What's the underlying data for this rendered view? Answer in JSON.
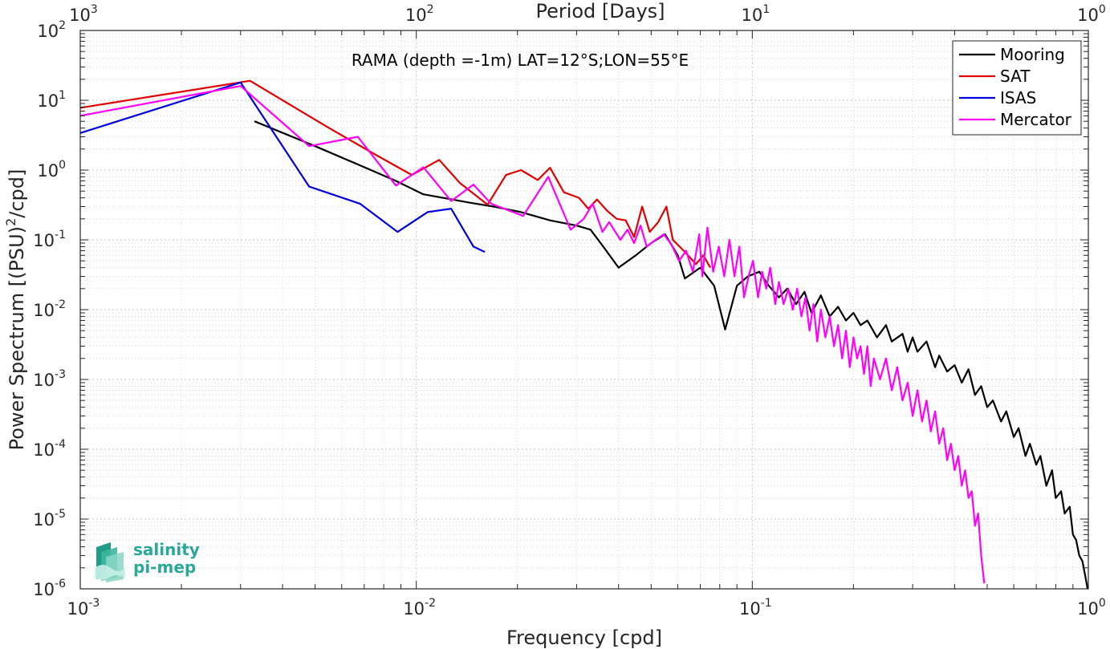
{
  "chart_data": {
    "type": "line",
    "title": "RAMA (depth =-1m) LAT=12°S;LON=55°E",
    "xlabel": "Frequency [cpd]",
    "ylabel": "Power Spectrum [(PSU)²/cpd]",
    "ylabel_parts": {
      "pre": "Power Spectrum [(PSU)",
      "sup": "2",
      "post": "/cpd]"
    },
    "top_xlabel": "Period [Days]",
    "xscale": "log",
    "yscale": "log",
    "xlim": [
      0.001,
      1
    ],
    "ylim": [
      1e-06,
      100
    ],
    "grid": true,
    "legend_position": "top-right",
    "x_ticks": [
      {
        "value": 0.001,
        "base": "10",
        "exp": "-3"
      },
      {
        "value": 0.01,
        "base": "10",
        "exp": "-2"
      },
      {
        "value": 0.1,
        "base": "10",
        "exp": "-1"
      },
      {
        "value": 1,
        "base": "10",
        "exp": "0"
      }
    ],
    "top_ticks": [
      {
        "value": 0.001,
        "base": "10",
        "exp": "3"
      },
      {
        "value": 0.01,
        "base": "10",
        "exp": "2"
      },
      {
        "value": 0.1,
        "base": "10",
        "exp": "1"
      },
      {
        "value": 1,
        "base": "10",
        "exp": "0"
      }
    ],
    "y_ticks": [
      {
        "value": 1e-06,
        "base": "10",
        "exp": "-6"
      },
      {
        "value": 1e-05,
        "base": "10",
        "exp": "-5"
      },
      {
        "value": 0.0001,
        "base": "10",
        "exp": "-4"
      },
      {
        "value": 0.001,
        "base": "10",
        "exp": "-3"
      },
      {
        "value": 0.01,
        "base": "10",
        "exp": "-2"
      },
      {
        "value": 0.1,
        "base": "10",
        "exp": "-1"
      },
      {
        "value": 1,
        "base": "10",
        "exp": "0"
      },
      {
        "value": 10,
        "base": "10",
        "exp": "1"
      },
      {
        "value": 100,
        "base": "10",
        "exp": "2"
      }
    ],
    "series": [
      {
        "name": "Mooring",
        "color": "#000000",
        "data": [
          [
            0.0033,
            5.0
          ],
          [
            0.005,
            2.2
          ],
          [
            0.007,
            1.1
          ],
          [
            0.0087,
            0.7
          ],
          [
            0.0105,
            0.45
          ],
          [
            0.012,
            0.4
          ],
          [
            0.0145,
            0.34
          ],
          [
            0.017,
            0.3
          ],
          [
            0.0205,
            0.25
          ],
          [
            0.025,
            0.19
          ],
          [
            0.03,
            0.16
          ],
          [
            0.033,
            0.14
          ],
          [
            0.036,
            0.08
          ],
          [
            0.04,
            0.04
          ],
          [
            0.045,
            0.06
          ],
          [
            0.05,
            0.09
          ],
          [
            0.055,
            0.12
          ],
          [
            0.06,
            0.06
          ],
          [
            0.063,
            0.028
          ],
          [
            0.07,
            0.04
          ],
          [
            0.077,
            0.022
          ],
          [
            0.083,
            0.0052
          ],
          [
            0.09,
            0.022
          ],
          [
            0.097,
            0.03
          ],
          [
            0.105,
            0.035
          ],
          [
            0.112,
            0.022
          ],
          [
            0.12,
            0.015
          ],
          [
            0.127,
            0.02
          ],
          [
            0.135,
            0.012
          ],
          [
            0.143,
            0.018
          ],
          [
            0.15,
            0.009
          ],
          [
            0.16,
            0.016
          ],
          [
            0.17,
            0.008
          ],
          [
            0.18,
            0.011
          ],
          [
            0.19,
            0.007
          ],
          [
            0.2,
            0.009
          ],
          [
            0.21,
            0.006
          ],
          [
            0.22,
            0.007
          ],
          [
            0.235,
            0.004
          ],
          [
            0.25,
            0.006
          ],
          [
            0.26,
            0.0035
          ],
          [
            0.28,
            0.0045
          ],
          [
            0.29,
            0.0025
          ],
          [
            0.3,
            0.004
          ],
          [
            0.31,
            0.0025
          ],
          [
            0.33,
            0.0035
          ],
          [
            0.35,
            0.0015
          ],
          [
            0.36,
            0.0022
          ],
          [
            0.38,
            0.0013
          ],
          [
            0.4,
            0.0016
          ],
          [
            0.42,
            0.0009
          ],
          [
            0.44,
            0.0014
          ],
          [
            0.46,
            0.0006
          ],
          [
            0.48,
            0.0008
          ],
          [
            0.5,
            0.0004
          ],
          [
            0.52,
            0.0005
          ],
          [
            0.55,
            0.00025
          ],
          [
            0.57,
            0.00035
          ],
          [
            0.6,
            0.00015
          ],
          [
            0.62,
            0.0002
          ],
          [
            0.65,
            8e-05
          ],
          [
            0.67,
            0.00012
          ],
          [
            0.7,
            6e-05
          ],
          [
            0.72,
            8e-05
          ],
          [
            0.75,
            3e-05
          ],
          [
            0.78,
            5e-05
          ],
          [
            0.8,
            2e-05
          ],
          [
            0.83,
            2.5e-05
          ],
          [
            0.85,
            1.2e-05
          ],
          [
            0.88,
            1.5e-05
          ],
          [
            0.9,
            6e-06
          ],
          [
            0.92,
            5e-06
          ],
          [
            0.94,
            3e-06
          ],
          [
            0.96,
            2.5e-06
          ],
          [
            0.98,
            1.5e-06
          ],
          [
            0.995,
            1e-06
          ]
        ]
      },
      {
        "name": "SAT",
        "color": "#e00000",
        "data": [
          [
            0.001,
            7.8
          ],
          [
            0.0032,
            19.0
          ],
          [
            0.0055,
            4.0
          ],
          [
            0.0075,
            1.7
          ],
          [
            0.0097,
            0.85
          ],
          [
            0.0117,
            1.4
          ],
          [
            0.0135,
            0.65
          ],
          [
            0.0163,
            0.32
          ],
          [
            0.0185,
            0.85
          ],
          [
            0.0205,
            1.0
          ],
          [
            0.023,
            0.72
          ],
          [
            0.025,
            1.08
          ],
          [
            0.0275,
            0.48
          ],
          [
            0.0305,
            0.4
          ],
          [
            0.0325,
            0.28
          ],
          [
            0.0345,
            0.38
          ],
          [
            0.037,
            0.26
          ],
          [
            0.0395,
            0.2
          ],
          [
            0.042,
            0.19
          ],
          [
            0.0445,
            0.11
          ],
          [
            0.047,
            0.3
          ],
          [
            0.0495,
            0.13
          ],
          [
            0.0525,
            0.18
          ],
          [
            0.0555,
            0.3
          ],
          [
            0.058,
            0.1
          ],
          [
            0.0625,
            0.07
          ],
          [
            0.068,
            0.045
          ],
          [
            0.0715,
            0.06
          ],
          [
            0.075,
            0.04
          ]
        ]
      },
      {
        "name": "ISAS",
        "color": "#0000e0",
        "data": [
          [
            0.001,
            3.4
          ],
          [
            0.003,
            18.0
          ],
          [
            0.0048,
            0.58
          ],
          [
            0.0068,
            0.33
          ],
          [
            0.0088,
            0.13
          ],
          [
            0.0108,
            0.25
          ],
          [
            0.0127,
            0.28
          ],
          [
            0.0148,
            0.08
          ],
          [
            0.016,
            0.067
          ]
        ]
      },
      {
        "name": "Mercator",
        "color": "#ff00ff",
        "data": [
          [
            0.001,
            6.0
          ],
          [
            0.003,
            16.0
          ],
          [
            0.0048,
            2.2
          ],
          [
            0.0067,
            3.0
          ],
          [
            0.0087,
            0.6
          ],
          [
            0.0105,
            1.1
          ],
          [
            0.0127,
            0.36
          ],
          [
            0.0148,
            0.62
          ],
          [
            0.0167,
            0.33
          ],
          [
            0.0208,
            0.22
          ],
          [
            0.0247,
            0.8
          ],
          [
            0.0288,
            0.14
          ],
          [
            0.0315,
            0.2
          ],
          [
            0.0335,
            0.33
          ],
          [
            0.0358,
            0.13
          ],
          [
            0.0375,
            0.18
          ],
          [
            0.0405,
            0.1
          ],
          [
            0.0425,
            0.14
          ],
          [
            0.0445,
            0.09
          ],
          [
            0.0465,
            0.16
          ],
          [
            0.0485,
            0.08
          ],
          [
            0.0515,
            0.1
          ],
          [
            0.0545,
            0.12
          ],
          [
            0.0575,
            0.085
          ],
          [
            0.0605,
            0.05
          ],
          [
            0.0635,
            0.07
          ],
          [
            0.0665,
            0.035
          ],
          [
            0.0695,
            0.12
          ],
          [
            0.071,
            0.03
          ],
          [
            0.0735,
            0.15
          ],
          [
            0.0765,
            0.035
          ],
          [
            0.0795,
            0.08
          ],
          [
            0.0825,
            0.03
          ],
          [
            0.0855,
            0.1
          ],
          [
            0.0885,
            0.03
          ],
          [
            0.0915,
            0.08
          ],
          [
            0.0945,
            0.015
          ],
          [
            0.0975,
            0.03
          ],
          [
            0.1005,
            0.05
          ],
          [
            0.104,
            0.015
          ],
          [
            0.107,
            0.035
          ],
          [
            0.11,
            0.02
          ],
          [
            0.113,
            0.04
          ],
          [
            0.117,
            0.012
          ],
          [
            0.12,
            0.025
          ],
          [
            0.124,
            0.012
          ],
          [
            0.128,
            0.02
          ],
          [
            0.132,
            0.01
          ],
          [
            0.136,
            0.02
          ],
          [
            0.14,
            0.008
          ],
          [
            0.144,
            0.015
          ],
          [
            0.148,
            0.005
          ],
          [
            0.152,
            0.012
          ],
          [
            0.156,
            0.0035
          ],
          [
            0.16,
            0.01
          ],
          [
            0.165,
            0.004
          ],
          [
            0.17,
            0.008
          ],
          [
            0.175,
            0.003
          ],
          [
            0.18,
            0.006
          ],
          [
            0.185,
            0.002
          ],
          [
            0.19,
            0.005
          ],
          [
            0.195,
            0.0015
          ],
          [
            0.2,
            0.004
          ],
          [
            0.205,
            0.002
          ],
          [
            0.21,
            0.003
          ],
          [
            0.215,
            0.0012
          ],
          [
            0.22,
            0.003
          ],
          [
            0.225,
            0.0008
          ],
          [
            0.23,
            0.002
          ],
          [
            0.24,
            0.001
          ],
          [
            0.25,
            0.002
          ],
          [
            0.26,
            0.0007
          ],
          [
            0.27,
            0.0015
          ],
          [
            0.28,
            0.0005
          ],
          [
            0.29,
            0.0009
          ],
          [
            0.3,
            0.0003
          ],
          [
            0.31,
            0.0007
          ],
          [
            0.32,
            0.00025
          ],
          [
            0.33,
            0.0005
          ],
          [
            0.34,
            0.00018
          ],
          [
            0.35,
            0.00035
          ],
          [
            0.36,
            0.00012
          ],
          [
            0.37,
            0.0002
          ],
          [
            0.38,
            7e-05
          ],
          [
            0.39,
            0.00012
          ],
          [
            0.4,
            5e-05
          ],
          [
            0.41,
            8e-05
          ],
          [
            0.42,
            3e-05
          ],
          [
            0.43,
            5e-05
          ],
          [
            0.44,
            2e-05
          ],
          [
            0.45,
            2.5e-05
          ],
          [
            0.46,
            8e-06
          ],
          [
            0.47,
            1.2e-05
          ],
          [
            0.48,
            3e-06
          ],
          [
            0.49,
            1.2e-06
          ]
        ]
      }
    ]
  },
  "watermark": {
    "line1": "salinity",
    "line2": "pi-mep"
  }
}
